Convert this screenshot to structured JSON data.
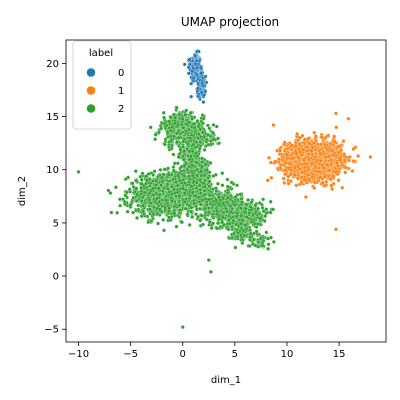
{
  "chart_data": {
    "type": "scatter",
    "title": "UMAP projection",
    "xlabel": "dim_1",
    "ylabel": "dim_2",
    "xlim": [
      -11.2,
      19.5
    ],
    "ylim": [
      -6.2,
      22.2
    ],
    "xticks": [
      -10,
      -5,
      0,
      5,
      10,
      15
    ],
    "yticks": [
      -5,
      0,
      5,
      10,
      15,
      20
    ],
    "tick_labels": {
      "x": [
        "−10",
        "−5",
        "0",
        "5",
        "10",
        "15"
      ],
      "y": [
        "−5",
        "0",
        "5",
        "10",
        "15",
        "20"
      ]
    },
    "grid": false,
    "legend": {
      "title": "label",
      "placement": "top-left"
    },
    "series": [
      {
        "name": "0",
        "color": "#1f77b4",
        "clusters": [
          {
            "cx": 1.2,
            "cy": 19.6,
            "sx": 0.25,
            "sy": 0.65,
            "n": 300
          },
          {
            "cx": 1.8,
            "cy": 17.8,
            "sx": 0.2,
            "sy": 0.5,
            "n": 90
          }
        ],
        "outliers": []
      },
      {
        "name": "1",
        "color": "#ff7f0e",
        "clusters": [
          {
            "cx": 12.5,
            "cy": 10.9,
            "sx": 1.35,
            "sy": 0.9,
            "n": 1600
          }
        ],
        "outliers": [
          [
            8.7,
            14.2
          ],
          [
            14.7,
            15.3
          ],
          [
            15.9,
            14.8
          ],
          [
            18.0,
            11.2
          ],
          [
            14.7,
            4.4
          ],
          [
            11.5,
            13.2
          ]
        ]
      },
      {
        "name": "2",
        "color": "#2ca02c",
        "clusters": [
          {
            "cx": -2.0,
            "cy": 7.6,
            "sx": 1.6,
            "sy": 0.95,
            "n": 900
          },
          {
            "cx": 0.4,
            "cy": 7.9,
            "sx": 1.3,
            "sy": 0.9,
            "n": 500
          },
          {
            "cx": 1.5,
            "cy": 9.2,
            "sx": 0.55,
            "sy": 0.9,
            "n": 300
          },
          {
            "cx": 0.0,
            "cy": 13.8,
            "sx": 1.0,
            "sy": 0.75,
            "n": 450
          },
          {
            "cx": 0.7,
            "cy": 11.7,
            "sx": 0.6,
            "sy": 0.9,
            "n": 200
          },
          {
            "cx": 3.6,
            "cy": 6.6,
            "sx": 0.95,
            "sy": 0.75,
            "n": 450
          },
          {
            "cx": 5.7,
            "cy": 5.8,
            "sx": 1.0,
            "sy": 0.65,
            "n": 450
          },
          {
            "cx": 7.3,
            "cy": 3.3,
            "sx": 0.6,
            "sy": 0.35,
            "n": 50
          },
          {
            "cx": 5.5,
            "cy": 4.2,
            "sx": 0.6,
            "sy": 0.5,
            "n": 80
          },
          {
            "cx": 2.1,
            "cy": 13.0,
            "sx": 0.6,
            "sy": 0.4,
            "n": 60
          }
        ],
        "outliers": [
          [
            -10.0,
            9.8
          ],
          [
            -1.8,
            4.3
          ],
          [
            0.0,
            -4.8
          ],
          [
            2.5,
            1.5
          ],
          [
            2.7,
            0.4
          ],
          [
            4.7,
            8.8
          ],
          [
            2.2,
            10.5
          ],
          [
            -0.4,
            11.2
          ]
        ]
      }
    ]
  }
}
